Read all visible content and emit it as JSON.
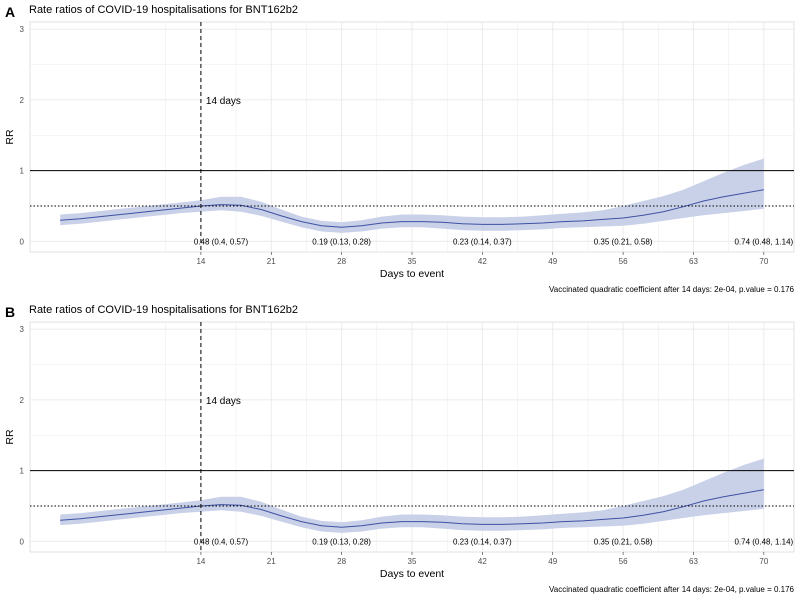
{
  "chart_data": [
    {
      "type": "line",
      "panel_tag": "A",
      "title": "Rate ratios of COVID-19 hospitalisations for BNT162b2",
      "xlabel": "Days to event",
      "ylabel": "RR",
      "xlim": [
        -3,
        73
      ],
      "ylim": [
        -0.15,
        3.1
      ],
      "x_ticks": [
        14,
        21,
        28,
        35,
        42,
        49,
        56,
        63,
        70
      ],
      "y_ticks": [
        0,
        1,
        2,
        3
      ],
      "grid": true,
      "legend": "none",
      "reference_lines": {
        "vline_x": 14,
        "vline_label": "14 days",
        "hline_solid": 1,
        "hline_dotted": 0.5
      },
      "series": [
        {
          "x": [
            0,
            2,
            4,
            6,
            8,
            10,
            12,
            14,
            16,
            18,
            20,
            22,
            24,
            26,
            28,
            30,
            32,
            34,
            36,
            38,
            40,
            42,
            44,
            46,
            48,
            50,
            52,
            54,
            56,
            58,
            60,
            62,
            64,
            66,
            68,
            70
          ],
          "y": [
            0.3,
            0.32,
            0.35,
            0.38,
            0.41,
            0.44,
            0.47,
            0.5,
            0.52,
            0.51,
            0.45,
            0.36,
            0.28,
            0.22,
            0.2,
            0.22,
            0.26,
            0.28,
            0.28,
            0.27,
            0.25,
            0.24,
            0.24,
            0.25,
            0.26,
            0.28,
            0.29,
            0.31,
            0.33,
            0.37,
            0.42,
            0.49,
            0.57,
            0.63,
            0.68,
            0.73
          ],
          "lower": [
            0.23,
            0.25,
            0.28,
            0.31,
            0.34,
            0.37,
            0.4,
            0.42,
            0.44,
            0.42,
            0.36,
            0.28,
            0.2,
            0.14,
            0.12,
            0.14,
            0.18,
            0.2,
            0.2,
            0.18,
            0.16,
            0.15,
            0.15,
            0.16,
            0.17,
            0.19,
            0.2,
            0.21,
            0.22,
            0.25,
            0.29,
            0.33,
            0.37,
            0.4,
            0.43,
            0.46
          ],
          "upper": [
            0.38,
            0.4,
            0.43,
            0.46,
            0.49,
            0.52,
            0.55,
            0.58,
            0.63,
            0.63,
            0.56,
            0.45,
            0.35,
            0.29,
            0.27,
            0.3,
            0.35,
            0.38,
            0.38,
            0.37,
            0.35,
            0.34,
            0.34,
            0.35,
            0.37,
            0.39,
            0.41,
            0.44,
            0.5,
            0.57,
            0.64,
            0.73,
            0.85,
            0.97,
            1.08,
            1.17
          ]
        }
      ],
      "estimates": [
        {
          "x": 16,
          "text": "0.48 (0.4, 0.57)"
        },
        {
          "x": 28,
          "text": "0.19 (0.13, 0.28)"
        },
        {
          "x": 42,
          "text": "0.23 (0.14, 0.37)"
        },
        {
          "x": 56,
          "text": "0.35 (0.21, 0.58)"
        },
        {
          "x": 70,
          "text": "0.74 (0.48, 1.14)"
        }
      ],
      "caption": "Vaccinated quadratic coefficient after 14 days: 2e-04, p.value = 0.176",
      "colors": {
        "line": "#3f51a3",
        "band": "#c9d1e8",
        "grid": "#ebebeb"
      }
    },
    {
      "type": "line",
      "panel_tag": "B",
      "title": "Rate ratios of COVID-19 hospitalisations for BNT162b2",
      "xlabel": "Days to event",
      "ylabel": "RR",
      "xlim": [
        -3,
        73
      ],
      "ylim": [
        -0.15,
        3.1
      ],
      "x_ticks": [
        14,
        21,
        28,
        35,
        42,
        49,
        56,
        63,
        70
      ],
      "y_ticks": [
        0,
        1,
        2,
        3
      ],
      "grid": true,
      "legend": "none",
      "reference_lines": {
        "vline_x": 14,
        "vline_label": "14 days",
        "hline_solid": 1,
        "hline_dotted": 0.5
      },
      "series": [
        {
          "x": [
            0,
            2,
            4,
            6,
            8,
            10,
            12,
            14,
            16,
            18,
            20,
            22,
            24,
            26,
            28,
            30,
            32,
            34,
            36,
            38,
            40,
            42,
            44,
            46,
            48,
            50,
            52,
            54,
            56,
            58,
            60,
            62,
            64,
            66,
            68,
            70
          ],
          "y": [
            0.3,
            0.32,
            0.35,
            0.38,
            0.41,
            0.44,
            0.47,
            0.5,
            0.52,
            0.51,
            0.45,
            0.36,
            0.28,
            0.22,
            0.2,
            0.22,
            0.26,
            0.28,
            0.28,
            0.27,
            0.25,
            0.24,
            0.24,
            0.25,
            0.26,
            0.28,
            0.29,
            0.31,
            0.33,
            0.37,
            0.42,
            0.49,
            0.57,
            0.63,
            0.68,
            0.73
          ],
          "lower": [
            0.23,
            0.25,
            0.28,
            0.31,
            0.34,
            0.37,
            0.4,
            0.42,
            0.44,
            0.42,
            0.36,
            0.28,
            0.2,
            0.14,
            0.12,
            0.14,
            0.18,
            0.2,
            0.2,
            0.18,
            0.16,
            0.15,
            0.15,
            0.16,
            0.17,
            0.19,
            0.2,
            0.21,
            0.22,
            0.25,
            0.29,
            0.33,
            0.37,
            0.4,
            0.43,
            0.46
          ],
          "upper": [
            0.38,
            0.4,
            0.43,
            0.46,
            0.49,
            0.52,
            0.55,
            0.58,
            0.63,
            0.63,
            0.56,
            0.45,
            0.35,
            0.29,
            0.27,
            0.3,
            0.35,
            0.38,
            0.38,
            0.37,
            0.35,
            0.34,
            0.34,
            0.35,
            0.37,
            0.39,
            0.41,
            0.44,
            0.5,
            0.57,
            0.64,
            0.73,
            0.85,
            0.97,
            1.08,
            1.17
          ]
        }
      ],
      "estimates": [
        {
          "x": 16,
          "text": "0.48 (0.4, 0.57)"
        },
        {
          "x": 28,
          "text": "0.19 (0.13, 0.28)"
        },
        {
          "x": 42,
          "text": "0.23 (0.14, 0.37)"
        },
        {
          "x": 56,
          "text": "0.35 (0.21, 0.58)"
        },
        {
          "x": 70,
          "text": "0.74 (0.48, 1.14)"
        }
      ],
      "caption": "Vaccinated quadratic coefficient after 14 days: 2e-04, p.value = 0.176",
      "colors": {
        "line": "#3f51a3",
        "band": "#c9d1e8",
        "grid": "#ebebeb"
      }
    }
  ]
}
